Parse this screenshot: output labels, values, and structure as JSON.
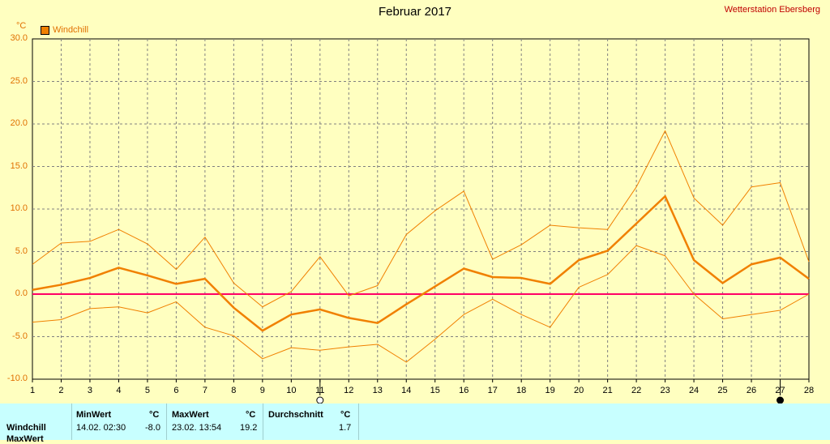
{
  "header": {
    "title": "Februar 2017",
    "station": "Wetterstation Ebersberg",
    "unit": "°C"
  },
  "legend": {
    "label": "Windchill",
    "color": "#f08000"
  },
  "chart_data": {
    "type": "line",
    "title": "Februar 2017",
    "ylabel": "°C",
    "ylim": [
      -10,
      30
    ],
    "xlim": [
      1,
      28
    ],
    "yticks": [
      "30.0",
      "25.0",
      "20.0",
      "15.0",
      "10.0",
      "5.0",
      "0.0",
      "-5.0",
      "-10.0"
    ],
    "x": [
      1,
      2,
      3,
      4,
      5,
      6,
      7,
      8,
      9,
      10,
      11,
      12,
      13,
      14,
      15,
      16,
      17,
      18,
      19,
      20,
      21,
      22,
      23,
      24,
      25,
      26,
      27,
      28
    ],
    "series": [
      {
        "name": "Windchill",
        "role": "mean",
        "values": [
          0.5,
          1.1,
          1.9,
          3.1,
          2.2,
          1.2,
          1.8,
          -1.6,
          -4.3,
          -2.4,
          -1.8,
          -2.8,
          -3.4,
          -1.2,
          0.9,
          3.0,
          2.0,
          1.9,
          1.2,
          4.0,
          5.1,
          8.3,
          11.5,
          4.0,
          1.3,
          3.5,
          4.3,
          1.8
        ]
      },
      {
        "role": "max",
        "values": [
          3.5,
          6.0,
          6.2,
          7.6,
          5.9,
          2.9,
          6.7,
          1.3,
          -1.5,
          0.3,
          4.4,
          -0.2,
          1.0,
          7.0,
          9.8,
          12.1,
          4.1,
          5.8,
          8.1,
          7.8,
          7.6,
          12.6,
          19.2,
          11.3,
          8.1,
          12.6,
          13.1,
          3.8
        ]
      },
      {
        "role": "min",
        "values": [
          -3.3,
          -3.0,
          -1.7,
          -1.5,
          -2.2,
          -0.9,
          -3.9,
          -4.9,
          -7.6,
          -6.3,
          -6.6,
          -6.2,
          -5.9,
          -8.0,
          -5.3,
          -2.4,
          -0.6,
          -2.4,
          -3.9,
          0.8,
          2.3,
          5.7,
          4.5,
          0.0,
          -2.9,
          -2.4,
          -1.9,
          0.0
        ]
      }
    ],
    "zero_line_color": "#ff0066",
    "grid": true,
    "markers": [
      {
        "x": 11,
        "type": "open-circle"
      },
      {
        "x": 27,
        "type": "filled-circle"
      }
    ]
  },
  "stats": {
    "row_label": "Windchill",
    "row_label_2": "MaxWert",
    "min": {
      "header": "MinWert",
      "unit": "°C",
      "date": "14.02.  02:30",
      "value": "-8.0"
    },
    "max": {
      "header": "MaxWert",
      "unit": "°C",
      "date": "23.02.  13:54",
      "value": "19.2"
    },
    "avg": {
      "header": "Durchschnitt",
      "unit": "°C",
      "value": "1.7"
    }
  }
}
